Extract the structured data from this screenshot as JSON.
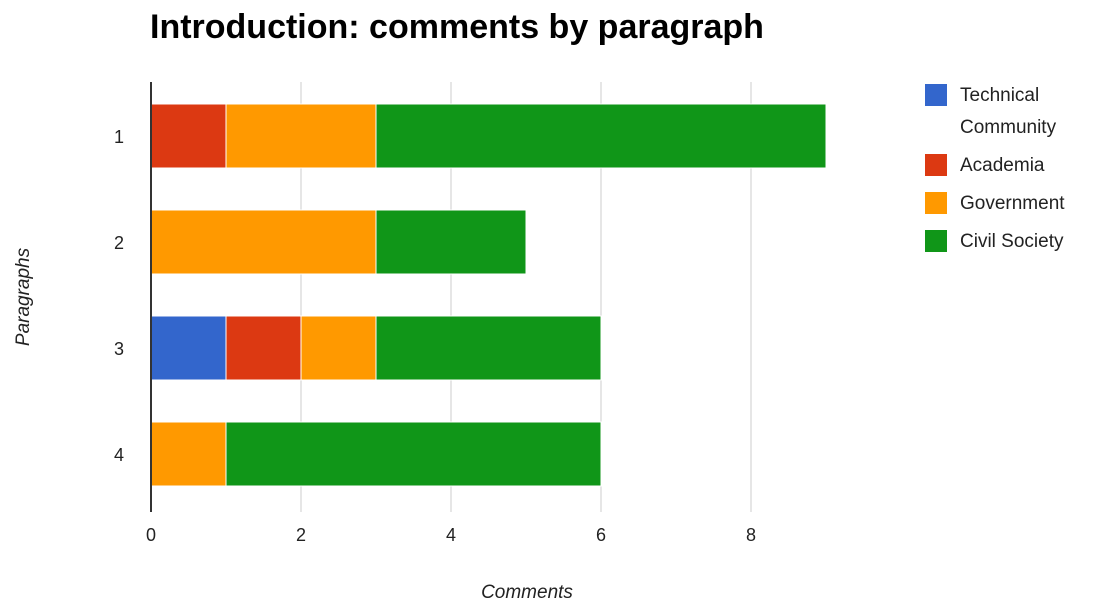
{
  "chart_data": {
    "type": "bar",
    "orientation": "horizontal",
    "stacked": true,
    "title": "Introduction: comments by paragraph",
    "xlabel": "Comments",
    "ylabel": "Paragraphs",
    "categories": [
      "1",
      "2",
      "3",
      "4"
    ],
    "series": [
      {
        "name": "Technical Community",
        "color": "#3366cc",
        "values": [
          0,
          0,
          1,
          0
        ]
      },
      {
        "name": "Academia",
        "color": "#dc3912",
        "values": [
          1,
          0,
          1,
          0
        ]
      },
      {
        "name": "Government",
        "color": "#ff9900",
        "values": [
          2,
          3,
          1,
          1
        ]
      },
      {
        "name": "Civil Society",
        "color": "#109618",
        "values": [
          6,
          2,
          3,
          5
        ]
      }
    ],
    "xlim": [
      0,
      10
    ],
    "xticks": [
      "0",
      "2",
      "4",
      "6",
      "8"
    ],
    "grid": true,
    "legend_position": "right"
  }
}
